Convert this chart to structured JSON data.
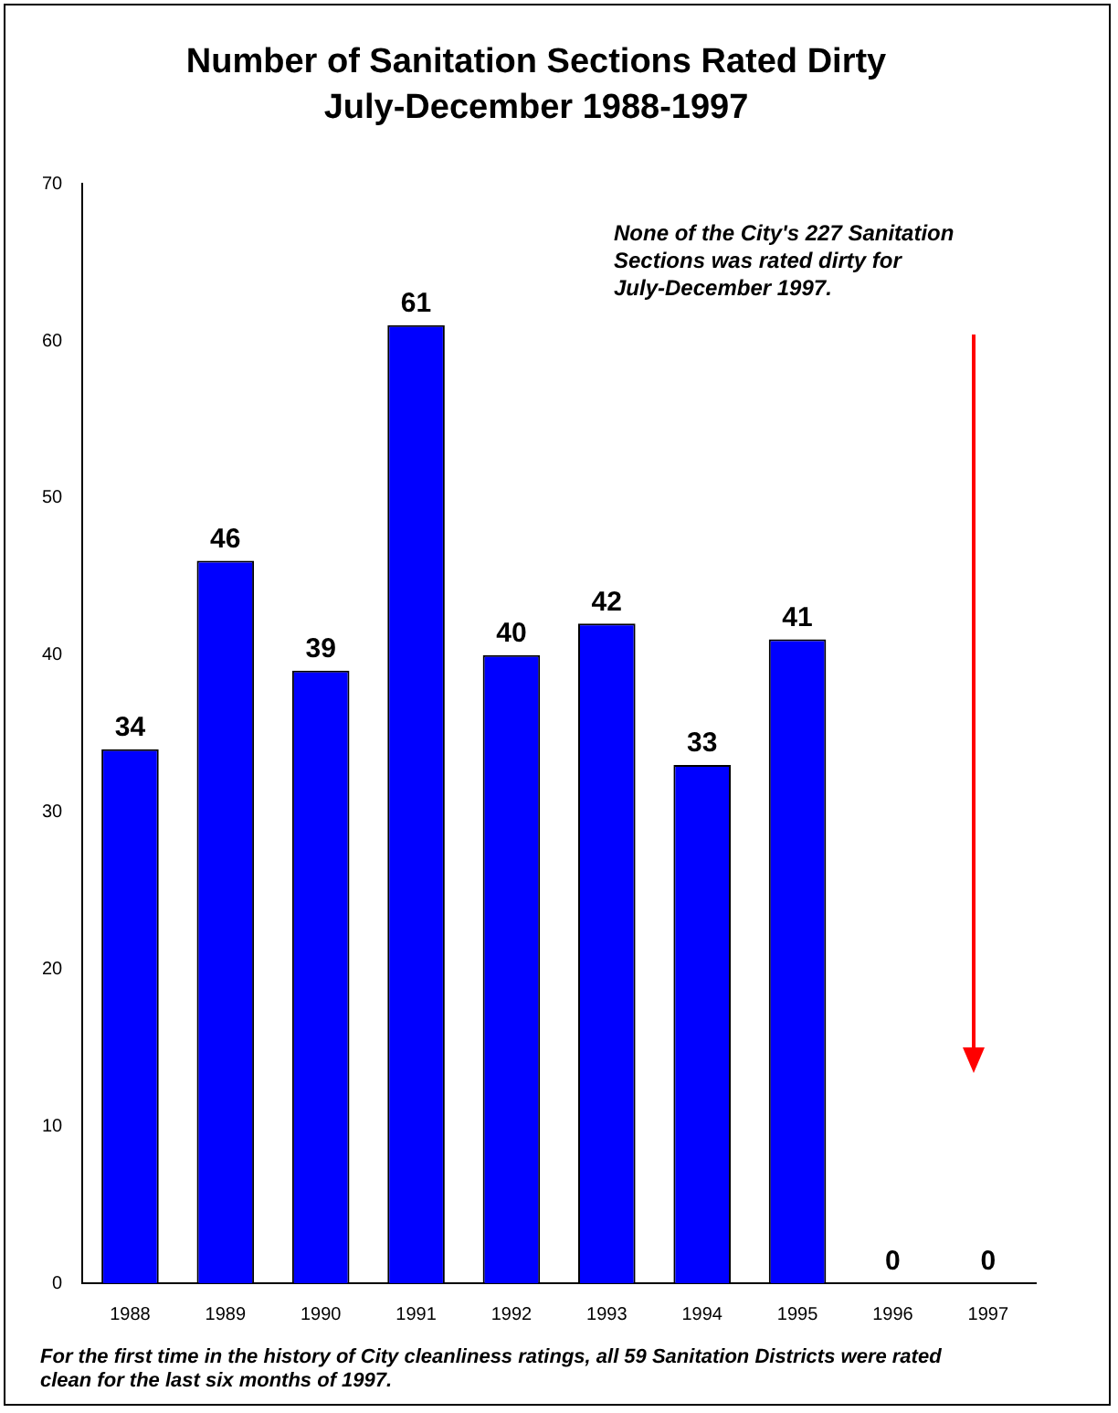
{
  "chart_data": {
    "type": "bar",
    "title": "Number of Sanitation Sections Rated Dirty",
    "subtitle": "July-December 1988-1997",
    "categories": [
      "1988",
      "1989",
      "1990",
      "1991",
      "1992",
      "1993",
      "1994",
      "1995",
      "1996",
      "1997"
    ],
    "values": [
      34,
      46,
      39,
      61,
      40,
      42,
      33,
      41,
      0,
      0
    ],
    "color": "#0000ff",
    "ylim": [
      0,
      70
    ],
    "yticks": [
      0,
      10,
      20,
      30,
      40,
      50,
      60,
      70
    ],
    "grid": false,
    "data_labels": true,
    "annotations": [
      "None of the City's 227 Sanitation Sections was rated dirty for July-December 1997.",
      "For the first time in the history of City cleanliness ratings, all 59 Sanitation Districts were rated clean for the last six months of 1997."
    ]
  }
}
